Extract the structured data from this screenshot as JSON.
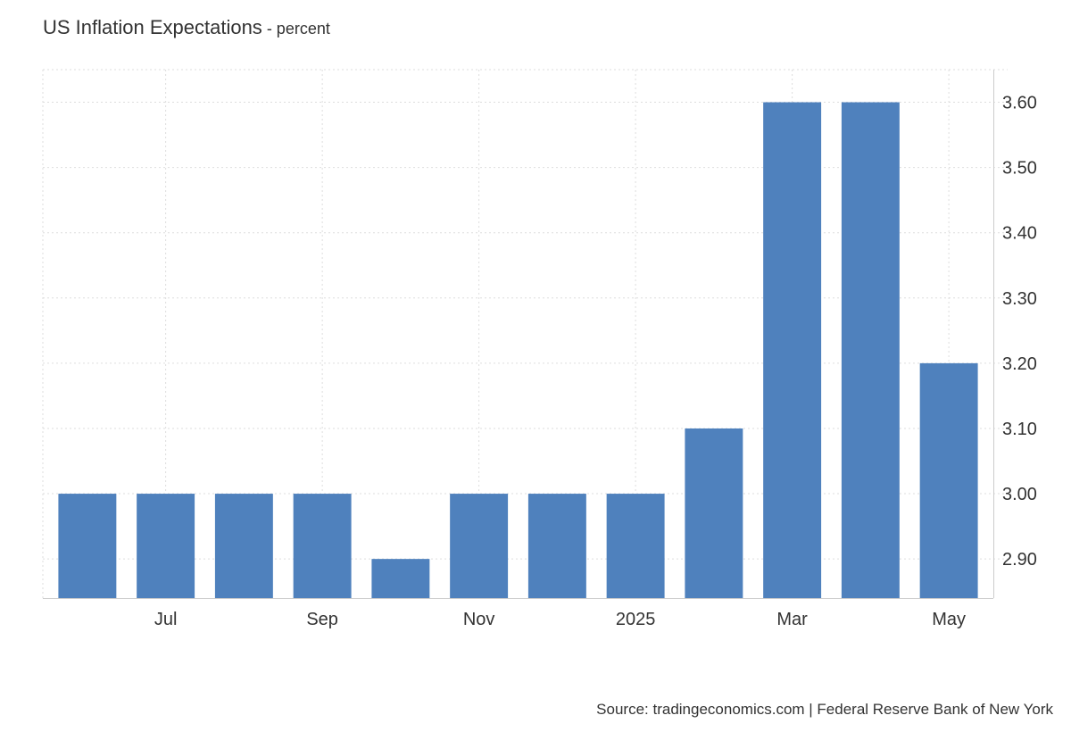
{
  "header": {
    "title": "US Inflation Expectations",
    "subtitle": " - percent"
  },
  "footer": {
    "source": "Source: tradingeconomics.com | Federal Reserve Bank of New York"
  },
  "colors": {
    "bar": "#4f81bd",
    "grid": "#dddddd",
    "text": "#333333"
  },
  "chart_data": {
    "type": "bar",
    "x": [
      "2024-06",
      "2024-07",
      "2024-08",
      "2024-09",
      "2024-10",
      "2024-11",
      "2024-12",
      "2025-01",
      "2025-02",
      "2025-03",
      "2025-04",
      "2025-05"
    ],
    "values": [
      3.0,
      3.0,
      3.0,
      3.0,
      2.9,
      3.0,
      3.0,
      3.0,
      3.1,
      3.6,
      3.6,
      3.2
    ],
    "x_tick_labels": [
      {
        "x": "2024-07",
        "label": "Jul"
      },
      {
        "x": "2024-09",
        "label": "Sep"
      },
      {
        "x": "2024-11",
        "label": "Nov"
      },
      {
        "x": "2025-01",
        "label": "2025"
      },
      {
        "x": "2025-03",
        "label": "Mar"
      },
      {
        "x": "2025-05",
        "label": "May"
      }
    ],
    "y_ticks": [
      "2.90",
      "3.00",
      "3.10",
      "3.20",
      "3.30",
      "3.40",
      "3.50",
      "3.60"
    ],
    "ylim": [
      2.84,
      3.65
    ],
    "y_axis_side": "right",
    "grid": true,
    "grid_style": "dotted",
    "legend": "none"
  }
}
